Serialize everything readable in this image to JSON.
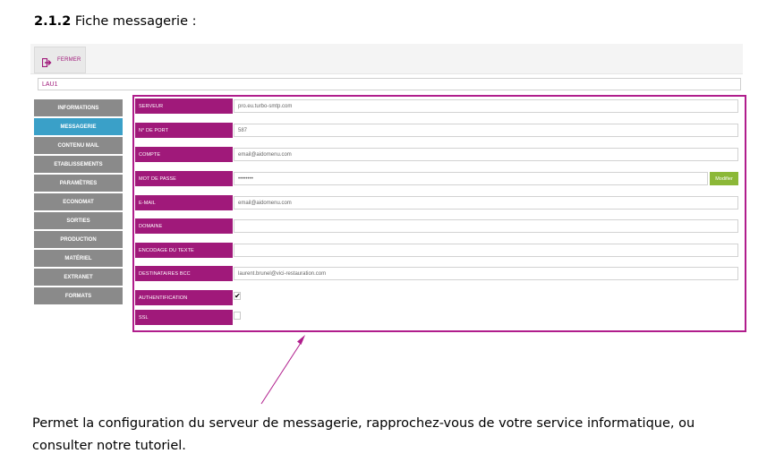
{
  "heading": {
    "number": "2.1.2",
    "title": "Fiche messagerie :"
  },
  "toolbar": {
    "close_label": "FERMER"
  },
  "record_name": "LAU1",
  "sidebar": {
    "items": [
      {
        "label": "INFORMATIONS",
        "active": false
      },
      {
        "label": "MESSAGERIE",
        "active": true
      },
      {
        "label": "CONTENU MAIL",
        "active": false
      },
      {
        "label": "ETABLISSEMENTS",
        "active": false
      },
      {
        "label": "PARAMÈTRES",
        "active": false
      },
      {
        "label": "ECONOMAT",
        "active": false
      },
      {
        "label": "SORTIES",
        "active": false
      },
      {
        "label": "PRODUCTION",
        "active": false
      },
      {
        "label": "MATÉRIEL",
        "active": false
      },
      {
        "label": "EXTRANET",
        "active": false
      },
      {
        "label": "FORMATS",
        "active": false
      }
    ]
  },
  "form": {
    "serveur": {
      "label": "SERVEUR",
      "value": "pro.eu.turbo-smtp.com"
    },
    "port": {
      "label": "N° DE PORT",
      "value": "587"
    },
    "compte": {
      "label": "COMPTE",
      "value": "email@aidomenu.com"
    },
    "mot_de_passe": {
      "label": "MOT DE PASSE",
      "value": "••••••••",
      "button": "Modifier"
    },
    "email": {
      "label": "E-MAIL",
      "value": "email@aidomenu.com"
    },
    "domaine": {
      "label": "DOMAINE",
      "value": ""
    },
    "encodage": {
      "label": "ENCODAGE DU TEXTE",
      "value": ""
    },
    "bcc": {
      "label": "DESTINATAIRES BCC",
      "value": "laurent.brunel@vici-restauration.com"
    },
    "authentification": {
      "label": "AUTHENTIFICATION",
      "checked": true,
      "mark": "✔"
    },
    "ssl": {
      "label": "SSL",
      "checked": false,
      "mark": ""
    }
  },
  "colors": {
    "accent": "#a0197a",
    "active_tab": "#3aa0c8",
    "tab": "#8a8a8a",
    "modify": "#8cb838"
  },
  "caption": "Permet la configuration du serveur de messagerie, rapprochez-vous de votre service informatique, ou consulter notre tutoriel."
}
